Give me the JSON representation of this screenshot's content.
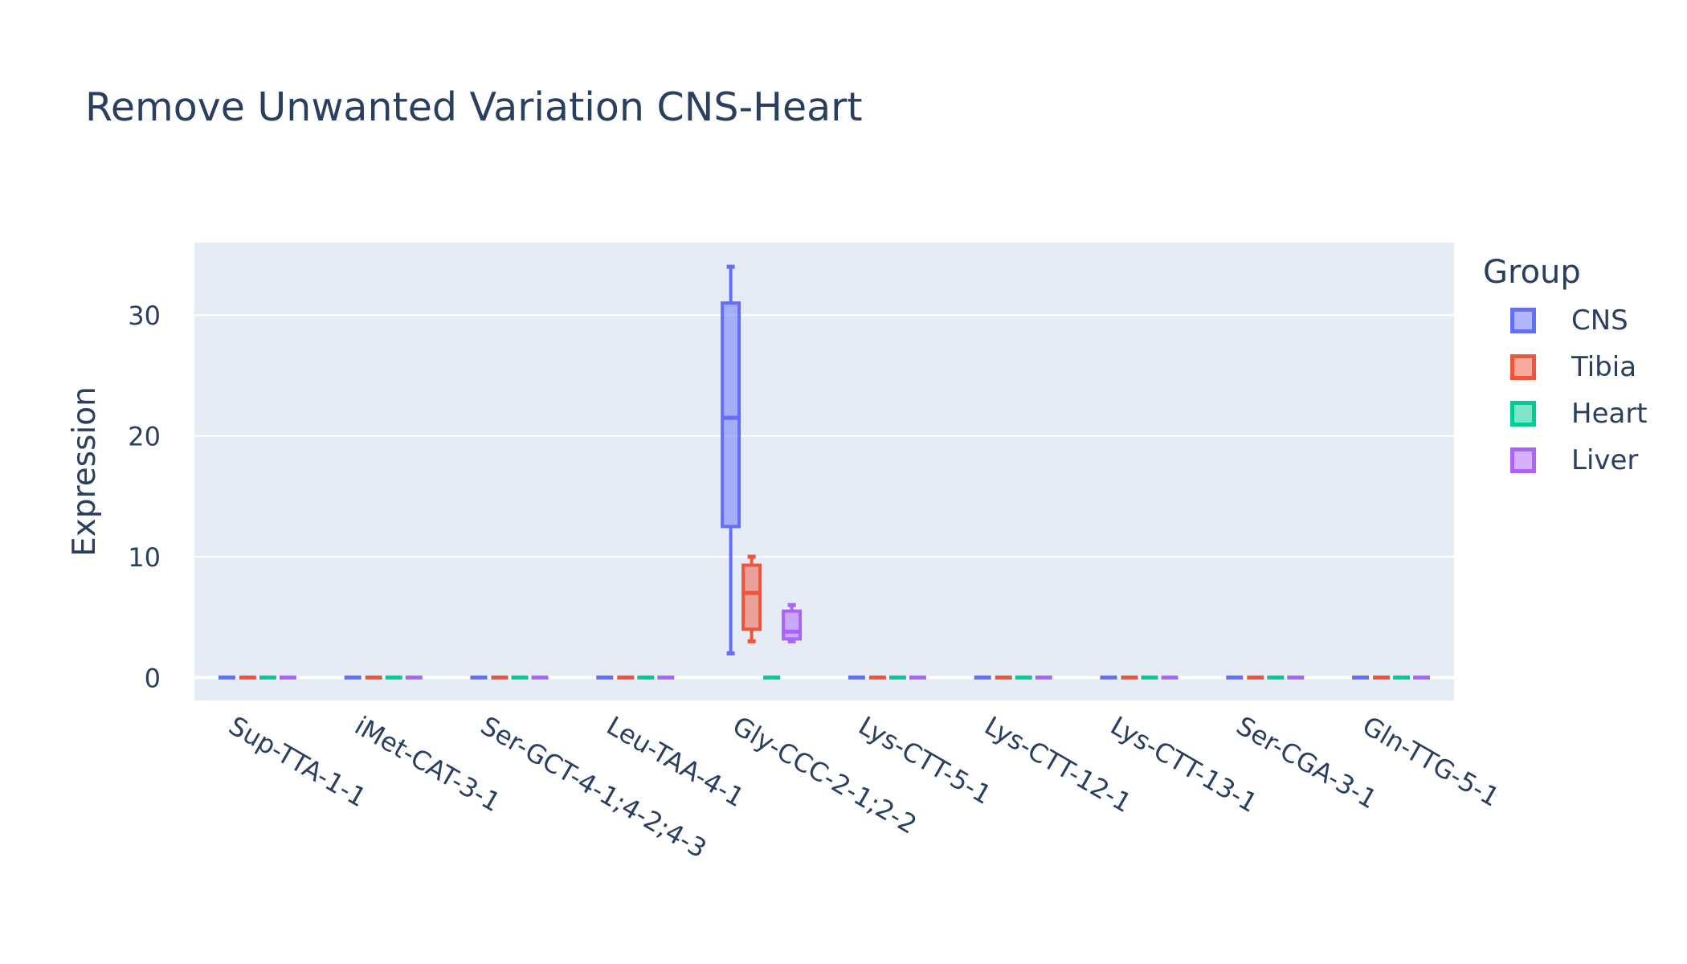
{
  "title": "Remove Unwanted Variation CNS-Heart",
  "legend": {
    "title": "Group",
    "items": [
      {
        "label": "CNS",
        "color": "#636efa"
      },
      {
        "label": "Tibia",
        "color": "#ef553b"
      },
      {
        "label": "Heart",
        "color": "#00cc96"
      },
      {
        "label": "Liver",
        "color": "#ab63fa"
      }
    ]
  },
  "chart_data": {
    "type": "box",
    "title": "Remove Unwanted Variation CNS-Heart",
    "xlabel": "",
    "ylabel": "Expression",
    "ylim": [
      -1.9,
      36
    ],
    "yticks": [
      0,
      10,
      20,
      30
    ],
    "grid": true,
    "legend_position": "right",
    "categories": [
      "Sup-TTA-1-1",
      "iMet-CAT-3-1",
      "Ser-GCT-4-1;4-2;4-3",
      "Leu-TAA-4-1",
      "Gly-CCC-2-1;2-2",
      "Lys-CTT-5-1",
      "Lys-CTT-12-1",
      "Lys-CTT-13-1",
      "Ser-CGA-3-1",
      "Gln-TTG-5-1"
    ],
    "series": [
      {
        "name": "CNS",
        "color": "#636efa",
        "boxes": [
          {
            "min": 0,
            "q1": 0,
            "median": 0,
            "q3": 0,
            "max": 0
          },
          {
            "min": 0,
            "q1": 0,
            "median": 0,
            "q3": 0,
            "max": 0
          },
          {
            "min": 0,
            "q1": 0,
            "median": 0,
            "q3": 0,
            "max": 0
          },
          {
            "min": 0,
            "q1": 0,
            "median": 0,
            "q3": 0,
            "max": 0
          },
          {
            "min": 2,
            "q1": 12.5,
            "median": 21.5,
            "q3": 31,
            "max": 34
          },
          {
            "min": 0,
            "q1": 0,
            "median": 0,
            "q3": 0,
            "max": 0
          },
          {
            "min": 0,
            "q1": 0,
            "median": 0,
            "q3": 0,
            "max": 0
          },
          {
            "min": 0,
            "q1": 0,
            "median": 0,
            "q3": 0,
            "max": 0
          },
          {
            "min": 0,
            "q1": 0,
            "median": 0,
            "q3": 0,
            "max": 0
          },
          {
            "min": 0,
            "q1": 0,
            "median": 0,
            "q3": 0,
            "max": 0
          }
        ]
      },
      {
        "name": "Tibia",
        "color": "#ef553b",
        "boxes": [
          {
            "min": 0,
            "q1": 0,
            "median": 0,
            "q3": 0,
            "max": 0
          },
          {
            "min": 0,
            "q1": 0,
            "median": 0,
            "q3": 0,
            "max": 0
          },
          {
            "min": 0,
            "q1": 0,
            "median": 0,
            "q3": 0,
            "max": 0
          },
          {
            "min": 0,
            "q1": 0,
            "median": 0,
            "q3": 0,
            "max": 0
          },
          {
            "min": 3,
            "q1": 4,
            "median": 7,
            "q3": 9.3,
            "max": 10
          },
          {
            "min": 0,
            "q1": 0,
            "median": 0,
            "q3": 0,
            "max": 0
          },
          {
            "min": 0,
            "q1": 0,
            "median": 0,
            "q3": 0,
            "max": 0
          },
          {
            "min": 0,
            "q1": 0,
            "median": 0,
            "q3": 0,
            "max": 0
          },
          {
            "min": 0,
            "q1": 0,
            "median": 0,
            "q3": 0,
            "max": 0
          },
          {
            "min": 0,
            "q1": 0,
            "median": 0,
            "q3": 0,
            "max": 0
          }
        ]
      },
      {
        "name": "Heart",
        "color": "#00cc96",
        "boxes": [
          {
            "min": 0,
            "q1": 0,
            "median": 0,
            "q3": 0,
            "max": 0
          },
          {
            "min": 0,
            "q1": 0,
            "median": 0,
            "q3": 0,
            "max": 0
          },
          {
            "min": 0,
            "q1": 0,
            "median": 0,
            "q3": 0,
            "max": 0
          },
          {
            "min": 0,
            "q1": 0,
            "median": 0,
            "q3": 0,
            "max": 0
          },
          {
            "min": 0,
            "q1": 0,
            "median": 0,
            "q3": 0,
            "max": 0
          },
          {
            "min": 0,
            "q1": 0,
            "median": 0,
            "q3": 0,
            "max": 0
          },
          {
            "min": 0,
            "q1": 0,
            "median": 0,
            "q3": 0,
            "max": 0
          },
          {
            "min": 0,
            "q1": 0,
            "median": 0,
            "q3": 0,
            "max": 0
          },
          {
            "min": 0,
            "q1": 0,
            "median": 0,
            "q3": 0,
            "max": 0
          },
          {
            "min": 0,
            "q1": 0,
            "median": 0,
            "q3": 0,
            "max": 0
          }
        ]
      },
      {
        "name": "Liver",
        "color": "#ab63fa",
        "boxes": [
          {
            "min": 0,
            "q1": 0,
            "median": 0,
            "q3": 0,
            "max": 0
          },
          {
            "min": 0,
            "q1": 0,
            "median": 0,
            "q3": 0,
            "max": 0
          },
          {
            "min": 0,
            "q1": 0,
            "median": 0,
            "q3": 0,
            "max": 0
          },
          {
            "min": 0,
            "q1": 0,
            "median": 0,
            "q3": 0,
            "max": 0
          },
          {
            "min": 3,
            "q1": 3.2,
            "median": 3.8,
            "q3": 5.5,
            "max": 6
          },
          {
            "min": 0,
            "q1": 0,
            "median": 0,
            "q3": 0,
            "max": 0
          },
          {
            "min": 0,
            "q1": 0,
            "median": 0,
            "q3": 0,
            "max": 0
          },
          {
            "min": 0,
            "q1": 0,
            "median": 0,
            "q3": 0,
            "max": 0
          },
          {
            "min": 0,
            "q1": 0,
            "median": 0,
            "q3": 0,
            "max": 0
          },
          {
            "min": 0,
            "q1": 0,
            "median": 0,
            "q3": 0,
            "max": 0
          }
        ]
      }
    ]
  }
}
